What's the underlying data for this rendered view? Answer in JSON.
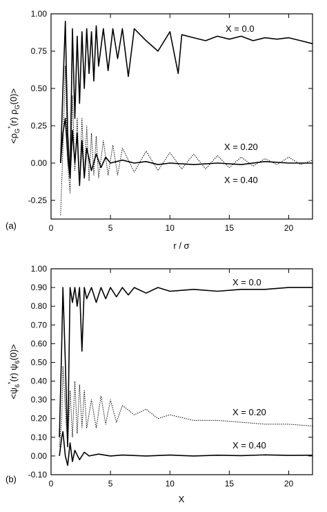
{
  "chart_data": [
    {
      "type": "line",
      "panel_label": "(a)",
      "xlabel": "r / σ",
      "ylabel_parts": [
        "<ρ",
        "G",
        "*",
        "(r) ρ",
        "G",
        "(0)>"
      ],
      "xlim": [
        0,
        22
      ],
      "ylim": [
        -0.375,
        1.0
      ],
      "xticks": [
        0,
        5,
        10,
        15,
        20
      ],
      "yticks": [
        -0.25,
        0.0,
        0.25,
        0.5,
        0.75,
        1.0
      ],
      "ytick_labels": [
        "-0.25",
        "0.00",
        "0.25",
        "0.50",
        "0.75",
        "1.00"
      ],
      "grid": false,
      "legend": "none",
      "annotations": [
        "X = 0.0",
        "X = 0.20",
        "X = 0.40"
      ],
      "series": [
        {
          "x": [
            0.8,
            1.0,
            1.2,
            1.4,
            1.6,
            1.8,
            2.0,
            2.2,
            2.4,
            2.6,
            2.8,
            3.0,
            3.2,
            3.4,
            3.6,
            3.8,
            4.0,
            4.4,
            4.8,
            5.2,
            5.6,
            6.0,
            6.5,
            7.0,
            8.0,
            9.0,
            10.0,
            10.7,
            11.0,
            12.0,
            13.0,
            14.0,
            15.0,
            16.0,
            17.0,
            18.0,
            19.0,
            20.0,
            21.0,
            22.0
          ],
          "y": [
            0.0,
            0.5,
            0.95,
            0.2,
            -0.1,
            0.9,
            0.3,
            0.85,
            0.4,
            0.88,
            0.5,
            0.9,
            0.6,
            0.88,
            0.55,
            0.92,
            0.65,
            0.9,
            0.62,
            0.9,
            0.7,
            0.9,
            0.58,
            0.9,
            0.82,
            0.75,
            0.88,
            0.6,
            0.86,
            0.84,
            0.82,
            0.85,
            0.83,
            0.85,
            0.82,
            0.84,
            0.83,
            0.84,
            0.82,
            0.8
          ]
        },
        {
          "x": [
            0.8,
            1.0,
            1.2,
            1.4,
            1.6,
            1.8,
            2.0,
            2.2,
            2.4,
            2.6,
            2.8,
            3.0,
            3.2,
            3.4,
            3.6,
            3.8,
            4.0,
            4.4,
            4.8,
            5.2,
            5.6,
            6.0,
            7.0,
            8.0,
            9.0,
            10.0,
            11.0,
            12.0,
            13.0,
            14.0,
            15.0,
            16.0,
            17.0,
            18.0,
            19.0,
            20.0,
            21.0,
            22.0
          ],
          "y": [
            -0.35,
            0.1,
            0.65,
            0.0,
            -0.2,
            0.45,
            -0.05,
            0.3,
            -0.15,
            0.3,
            -0.1,
            0.25,
            -0.12,
            0.2,
            -0.08,
            0.18,
            -0.1,
            0.15,
            -0.08,
            0.12,
            -0.08,
            0.1,
            -0.06,
            0.08,
            -0.05,
            0.07,
            -0.04,
            0.06,
            -0.04,
            0.05,
            -0.03,
            0.04,
            -0.02,
            0.03,
            -0.01,
            0.04,
            -0.01,
            0.02
          ]
        },
        {
          "x": [
            0.8,
            1.0,
            1.2,
            1.4,
            1.6,
            1.8,
            2.0,
            2.2,
            2.4,
            2.6,
            2.8,
            3.0,
            3.4,
            3.8,
            4.2,
            4.6,
            5.0,
            6.0,
            7.0,
            8.0,
            9.0,
            10.0,
            12.0,
            14.0,
            16.0,
            18.0,
            20.0,
            22.0
          ],
          "y": [
            0.0,
            0.2,
            0.3,
            0.05,
            -0.1,
            0.22,
            0.0,
            0.2,
            -0.15,
            0.15,
            -0.1,
            0.1,
            -0.05,
            0.06,
            -0.03,
            0.04,
            0.0,
            0.02,
            0.0,
            0.01,
            -0.01,
            0.0,
            -0.01,
            0.0,
            -0.01,
            0.01,
            0.0,
            0.0
          ]
        }
      ]
    },
    {
      "type": "line",
      "panel_label": "(b)",
      "xlabel": "X",
      "ylabel_parts": [
        "<ψ",
        "6",
        "*",
        "(r) ψ",
        "6",
        "(0)>"
      ],
      "xlim": [
        0,
        22
      ],
      "ylim": [
        -0.1,
        1.0
      ],
      "xticks": [
        0,
        5,
        10,
        15,
        20
      ],
      "yticks": [
        -0.1,
        0.0,
        0.1,
        0.2,
        0.3,
        0.4,
        0.5,
        0.6,
        0.7,
        0.8,
        0.9,
        1.0
      ],
      "ytick_labels": [
        "-0.10",
        "0.00",
        "0.10",
        "0.20",
        "0.30",
        "0.40",
        "0.50",
        "0.60",
        "0.70",
        "0.80",
        "0.90",
        "1.00"
      ],
      "grid": false,
      "legend": "none",
      "annotations": [
        "X = 0.0",
        "X = 0.20",
        "X = 0.40"
      ],
      "series": [
        {
          "x": [
            0.7,
            0.9,
            1.0,
            1.2,
            1.4,
            1.6,
            1.8,
            2.0,
            2.2,
            2.4,
            2.6,
            2.8,
            3.0,
            3.4,
            3.8,
            4.2,
            4.6,
            5.0,
            5.5,
            6.0,
            6.5,
            7.0,
            8.0,
            9.0,
            10.0,
            12.0,
            14.0,
            16.0,
            18.0,
            20.0,
            22.0
          ],
          "y": [
            0.1,
            0.6,
            0.9,
            0.5,
            0.05,
            0.9,
            0.82,
            0.9,
            0.8,
            0.9,
            0.56,
            0.9,
            0.84,
            0.9,
            0.82,
            0.9,
            0.84,
            0.9,
            0.85,
            0.9,
            0.86,
            0.9,
            0.87,
            0.9,
            0.88,
            0.89,
            0.88,
            0.89,
            0.89,
            0.9,
            0.9
          ]
        },
        {
          "x": [
            0.7,
            0.9,
            1.0,
            1.2,
            1.4,
            1.6,
            1.8,
            2.0,
            2.2,
            2.4,
            2.6,
            2.8,
            3.0,
            3.4,
            3.8,
            4.2,
            4.6,
            5.0,
            5.5,
            6.0,
            7.0,
            8.0,
            9.0,
            10.0,
            12.0,
            14.0,
            16.0,
            18.0,
            20.0,
            22.0
          ],
          "y": [
            0.05,
            0.2,
            0.48,
            0.25,
            0.05,
            0.35,
            0.1,
            0.4,
            0.12,
            0.38,
            0.15,
            0.35,
            0.15,
            0.3,
            0.15,
            0.32,
            0.17,
            0.3,
            0.18,
            0.27,
            0.22,
            0.25,
            0.2,
            0.22,
            0.19,
            0.19,
            0.18,
            0.17,
            0.17,
            0.16
          ]
        },
        {
          "x": [
            0.7,
            0.9,
            1.0,
            1.2,
            1.4,
            1.6,
            1.8,
            2.0,
            2.4,
            2.8,
            3.2,
            4.0,
            5.0,
            6.0,
            8.0,
            10.0,
            12.0,
            14.0,
            16.0,
            18.0,
            20.0,
            22.0
          ],
          "y": [
            0.0,
            0.1,
            0.13,
            0.0,
            -0.05,
            0.07,
            -0.03,
            0.03,
            -0.02,
            0.02,
            0.0,
            0.01,
            0.0,
            0.005,
            0.0,
            0.005,
            0.0,
            0.004,
            0.002,
            0.006,
            0.003,
            0.004
          ]
        }
      ]
    }
  ],
  "colors": {
    "ink": "#000000",
    "background": "#ffffff"
  }
}
